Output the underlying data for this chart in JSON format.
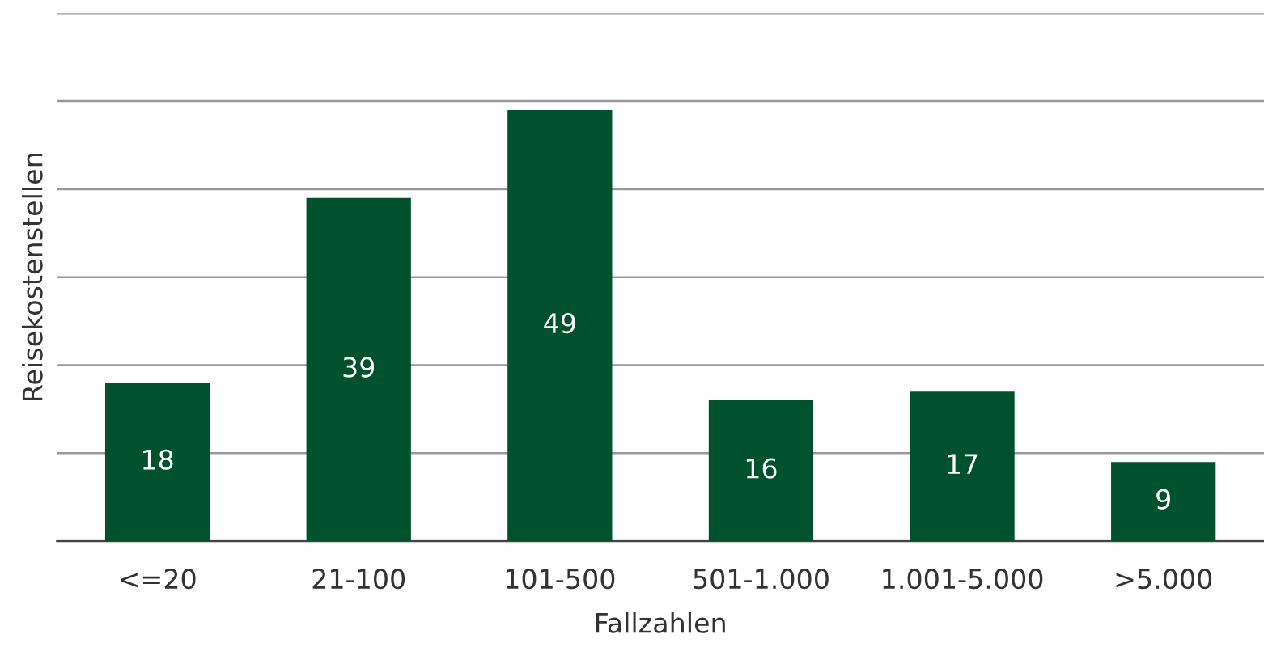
{
  "chart_data": {
    "type": "bar",
    "xlabel": "Fallzahlen",
    "ylabel": "Reisekostenstellen",
    "categories": [
      "<=20",
      "21-100",
      "101-500",
      "501-1.000",
      "1.001-5.000",
      ">5.000"
    ],
    "values": [
      18,
      39,
      49,
      16,
      17,
      9
    ],
    "color": "#00522f",
    "ylim": [
      0,
      60
    ],
    "yticks": [
      {
        "value": 0,
        "label": null
      },
      {
        "value": 10,
        "label": null
      },
      {
        "value": 20,
        "label": null
      },
      {
        "value": 30,
        "label": null
      },
      {
        "value": 40,
        "label": null
      },
      {
        "value": 50,
        "label": null
      },
      {
        "value": 60,
        "label": null
      }
    ],
    "tick_labels": "x",
    "grid": "y",
    "data_labels": true
  }
}
